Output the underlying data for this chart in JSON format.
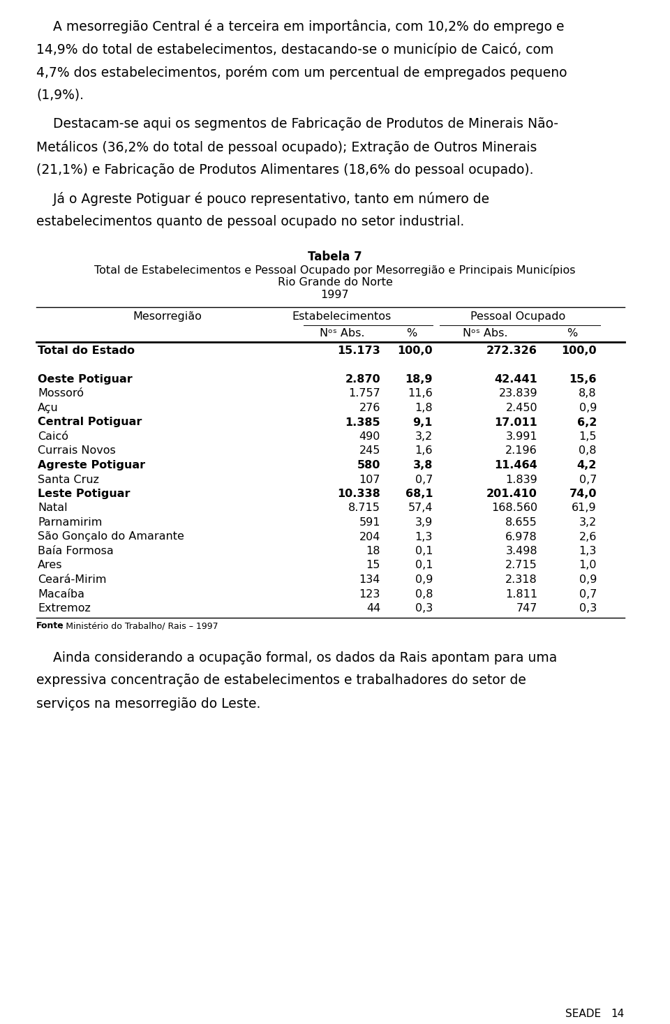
{
  "para1_lines": [
    "    A mesorregião Central é a terceira em importância, com 10,2% do emprego e",
    "14,9% do total de estabelecimentos, destacando-se o município de Caicó, com",
    "4,7% dos estabelecimentos, porém com um percentual de empregados pequeno",
    "(1,9%)."
  ],
  "para2_lines": [
    "    Destacam-se aqui os segmentos de Fabricação de Produtos de Minerais Não-",
    "Metálicos (36,2% do total de pessoal ocupado); Extração de Outros Minerais",
    "(21,1%) e Fabricação de Produtos Alimentares (18,6% do pessoal ocupado)."
  ],
  "para3_lines": [
    "    Já o Agreste Potiguar é pouco representativo, tanto em número de",
    "estabelecimentos quanto de pessoal ocupado no setor industrial."
  ],
  "table_title_line1": "Tabela 7",
  "table_title_line2": "Total de Estabelecimentos e Pessoal Ocupado por Mesorregião e Principais Municípios",
  "table_title_line3": "Rio Grande do Norte",
  "table_title_line4": "1997",
  "rows": [
    {
      "label": "Total do Estado",
      "bold": true,
      "v1": "15.173",
      "v2": "100,0",
      "v3": "272.326",
      "v4": "100,0",
      "spacer_before": false
    },
    {
      "label": "",
      "bold": false,
      "v1": "",
      "v2": "",
      "v3": "",
      "v4": "",
      "spacer_before": false
    },
    {
      "label": "Oeste Potiguar",
      "bold": true,
      "v1": "2.870",
      "v2": "18,9",
      "v3": "42.441",
      "v4": "15,6",
      "spacer_before": false
    },
    {
      "label": "Mossoró",
      "bold": false,
      "v1": "1.757",
      "v2": "11,6",
      "v3": "23.839",
      "v4": "8,8",
      "spacer_before": false
    },
    {
      "label": "Açu",
      "bold": false,
      "v1": "276",
      "v2": "1,8",
      "v3": "2.450",
      "v4": "0,9",
      "spacer_before": false
    },
    {
      "label": "Central Potiguar",
      "bold": true,
      "v1": "1.385",
      "v2": "9,1",
      "v3": "17.011",
      "v4": "6,2",
      "spacer_before": false
    },
    {
      "label": "Caicó",
      "bold": false,
      "v1": "490",
      "v2": "3,2",
      "v3": "3.991",
      "v4": "1,5",
      "spacer_before": false
    },
    {
      "label": "Currais Novos",
      "bold": false,
      "v1": "245",
      "v2": "1,6",
      "v3": "2.196",
      "v4": "0,8",
      "spacer_before": false
    },
    {
      "label": "Agreste Potiguar",
      "bold": true,
      "v1": "580",
      "v2": "3,8",
      "v3": "11.464",
      "v4": "4,2",
      "spacer_before": false
    },
    {
      "label": "Santa Cruz",
      "bold": false,
      "v1": "107",
      "v2": "0,7",
      "v3": "1.839",
      "v4": "0,7",
      "spacer_before": false
    },
    {
      "label": "Leste Potiguar",
      "bold": true,
      "v1": "10.338",
      "v2": "68,1",
      "v3": "201.410",
      "v4": "74,0",
      "spacer_before": false
    },
    {
      "label": "Natal",
      "bold": false,
      "v1": "8.715",
      "v2": "57,4",
      "v3": "168.560",
      "v4": "61,9",
      "spacer_before": false
    },
    {
      "label": "Parnamirim",
      "bold": false,
      "v1": "591",
      "v2": "3,9",
      "v3": "8.655",
      "v4": "3,2",
      "spacer_before": false
    },
    {
      "label": "São Gonçalo do Amarante",
      "bold": false,
      "v1": "204",
      "v2": "1,3",
      "v3": "6.978",
      "v4": "2,6",
      "spacer_before": false
    },
    {
      "label": "Baía Formosa",
      "bold": false,
      "v1": "18",
      "v2": "0,1",
      "v3": "3.498",
      "v4": "1,3",
      "spacer_before": false
    },
    {
      "label": "Ares",
      "bold": false,
      "v1": "15",
      "v2": "0,1",
      "v3": "2.715",
      "v4": "1,0",
      "spacer_before": false
    },
    {
      "label": "Ceará-Mirim",
      "bold": false,
      "v1": "134",
      "v2": "0,9",
      "v3": "2.318",
      "v4": "0,9",
      "spacer_before": false
    },
    {
      "label": "Macaíba",
      "bold": false,
      "v1": "123",
      "v2": "0,8",
      "v3": "1.811",
      "v4": "0,7",
      "spacer_before": false
    },
    {
      "label": "Extremoz",
      "bold": false,
      "v1": "44",
      "v2": "0,3",
      "v3": "747",
      "v4": "0,3",
      "spacer_before": false
    }
  ],
  "fonte_bold": "Fonte",
  "fonte_rest": ": Ministério do Trabalho/ Rais – 1997",
  "closing_lines": [
    "    Ainda considerando a ocupação formal, os dados da Rais apontam para uma",
    "expressiva concentração de estabelecimentos e trabalhadores do setor de",
    "serviços na mesorregião do Leste."
  ],
  "footer_seade": "SEADE",
  "footer_page": "14",
  "bg_color": "#ffffff",
  "text_color": "#000000"
}
